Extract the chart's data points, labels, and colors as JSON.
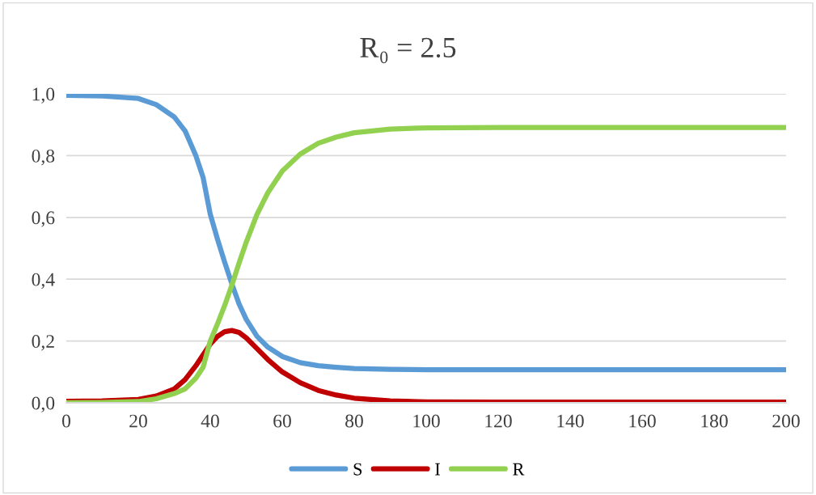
{
  "chart_data": {
    "type": "line",
    "title": "R₀ = 2.5",
    "x": [
      0,
      10,
      20,
      25,
      30,
      33,
      36,
      38,
      40,
      42,
      44,
      46,
      48,
      50,
      53,
      56,
      60,
      65,
      70,
      75,
      80,
      90,
      100,
      120,
      150,
      200
    ],
    "series": [
      {
        "name": "S",
        "color": "#5b9bd5",
        "values": [
          0.995,
          0.993,
          0.985,
          0.965,
          0.925,
          0.88,
          0.8,
          0.73,
          0.61,
          0.53,
          0.455,
          0.385,
          0.32,
          0.27,
          0.215,
          0.18,
          0.15,
          0.13,
          0.12,
          0.115,
          0.111,
          0.108,
          0.107,
          0.107,
          0.107,
          0.107
        ]
      },
      {
        "name": "I",
        "color": "#c00000",
        "values": [
          0.005,
          0.006,
          0.011,
          0.022,
          0.045,
          0.075,
          0.12,
          0.155,
          0.19,
          0.215,
          0.23,
          0.234,
          0.228,
          0.21,
          0.175,
          0.14,
          0.1,
          0.065,
          0.04,
          0.025,
          0.015,
          0.006,
          0.003,
          0.002,
          0.002,
          0.002
        ]
      },
      {
        "name": "R",
        "color": "#92d050",
        "values": [
          0,
          0.001,
          0.004,
          0.013,
          0.03,
          0.045,
          0.08,
          0.115,
          0.2,
          0.255,
          0.315,
          0.381,
          0.452,
          0.52,
          0.61,
          0.68,
          0.75,
          0.805,
          0.84,
          0.86,
          0.874,
          0.886,
          0.89,
          0.891,
          0.891,
          0.891
        ]
      }
    ],
    "xlim": [
      0,
      200
    ],
    "xticks": [
      0,
      20,
      40,
      60,
      80,
      100,
      120,
      140,
      160,
      180,
      200
    ],
    "ylim": [
      0,
      1
    ],
    "yticks": [
      {
        "value": 0,
        "label": "0,0"
      },
      {
        "value": 0.2,
        "label": "0,2"
      },
      {
        "value": 0.4,
        "label": "0,4"
      },
      {
        "value": 0.6,
        "label": "0,6"
      },
      {
        "value": 0.8,
        "label": "0,8"
      },
      {
        "value": 1,
        "label": "1,0"
      }
    ],
    "grid": "y",
    "legend": "bottom",
    "marker": "none",
    "line_style": "solid"
  }
}
